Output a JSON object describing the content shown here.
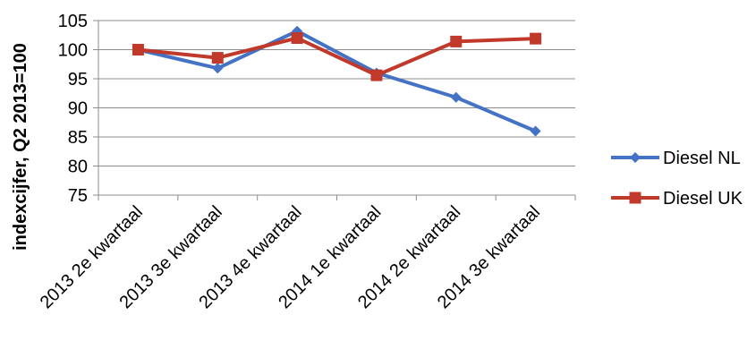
{
  "chart_data": {
    "type": "line",
    "categories": [
      "2013 2e kwartaal",
      "2013 3e kwartaal",
      "2013 4e kwartaal",
      "2014 1e kwartaal",
      "2014 2e kwartaal",
      "2014 3e kwartaal"
    ],
    "series": [
      {
        "name": "Diesel NL",
        "values": [
          100,
          96.8,
          103.2,
          96.0,
          91.8,
          86.0
        ],
        "color": "#4472C4",
        "marker": "diamond"
      },
      {
        "name": "Diesel UK",
        "values": [
          100,
          98.6,
          102.0,
          95.6,
          101.4,
          101.9
        ],
        "color": "#C0392B",
        "marker": "square"
      }
    ],
    "title": "",
    "xlabel": "",
    "ylabel": "indexcijfer, Q2 2013=100",
    "ylim": [
      75,
      105
    ],
    "yticks": [
      75,
      80,
      85,
      90,
      95,
      100,
      105
    ],
    "grid": true,
    "legend": "right"
  }
}
